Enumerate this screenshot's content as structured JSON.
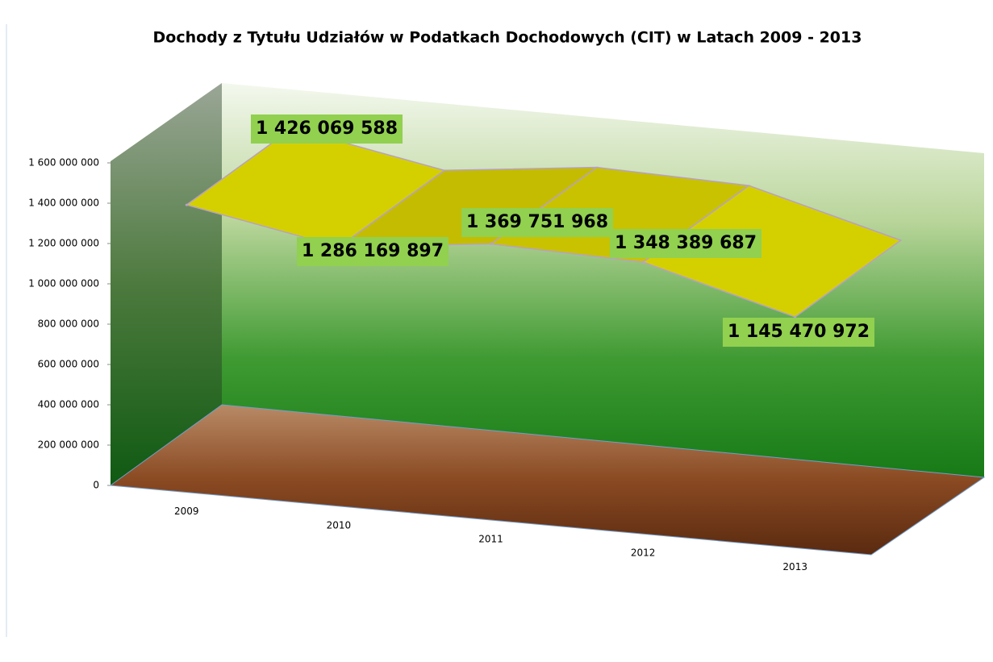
{
  "chart_data": {
    "type": "ribbon3d",
    "title": "Dochody z Tytułu Udziałów w Podatkach Dochodowych  (CIT) w Latach 2009 - 2013",
    "categories": [
      "2009",
      "2010",
      "2011",
      "2012",
      "2013"
    ],
    "values": [
      1426069588,
      1286169897,
      1369751968,
      1348389687,
      1145470972
    ],
    "value_labels": [
      "1 426 069 588",
      "1 286 169 897",
      "1 369 751 968",
      "1 348 389 687",
      "1 145 470 972"
    ],
    "color": "#d4d000",
    "label_color": "#92d050",
    "ylim": [
      0,
      1600000000
    ],
    "yticks": [
      {
        "value": 0,
        "label": "0"
      },
      {
        "value": 200000000,
        "label": "200 000 000"
      },
      {
        "value": 400000000,
        "label": "400 000 000"
      },
      {
        "value": 600000000,
        "label": "600 000 000"
      },
      {
        "value": 800000000,
        "label": "800 000 000"
      },
      {
        "value": 1000000000,
        "label": "1 000 000 000"
      },
      {
        "value": 1200000000,
        "label": "1 200 000 000"
      },
      {
        "value": 1400000000,
        "label": "1 400 000 000"
      },
      {
        "value": 1600000000,
        "label": "1 600 000 000"
      }
    ]
  }
}
